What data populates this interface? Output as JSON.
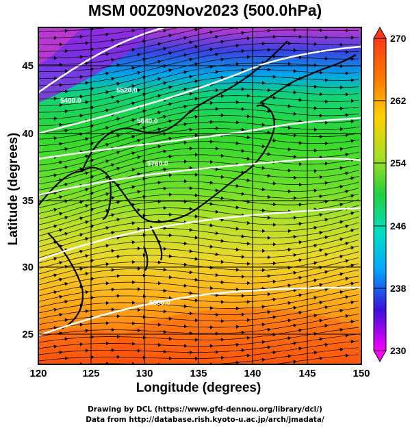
{
  "title": "MSM 00Z09Nov2023 (500.0hPa)",
  "footer": {
    "line1": "Drawing by DCL (https://www.gfd-dennou.org/library/dcl/)",
    "line2": "Data from http://database.rish.kyoto-u.ac.jp/arch/jmadata/"
  },
  "chart_data": {
    "type": "heatmap",
    "title": "MSM 00Z09Nov2023 (500.0hPa)",
    "xlabel": "Longitude (degrees)",
    "ylabel": "Latitude  (degrees)",
    "xlim": [
      120,
      150
    ],
    "ylim": [
      22.4,
      47.6
    ],
    "x_ticks": [
      120,
      125,
      130,
      135,
      140,
      145,
      150
    ],
    "y_ticks": [
      25,
      30,
      35,
      40,
      45
    ],
    "colorbar": {
      "min": 230,
      "max": 270,
      "tick_labels": [
        "270",
        "262",
        "254",
        "246",
        "238",
        "230"
      ],
      "colors": [
        "#ff00ff",
        "#3a10d8",
        "#00a8ff",
        "#00e0c0",
        "#22d040",
        "#a8e020",
        "#ffd000",
        "#ff7a00",
        "#ff3a1a"
      ]
    },
    "contour_labels": [
      "5400.0",
      "5520.0",
      "5640.0",
      "5760.0",
      "5880.0"
    ],
    "overlay": "wind streamlines with arrows (westerly flow)",
    "grid": true
  }
}
